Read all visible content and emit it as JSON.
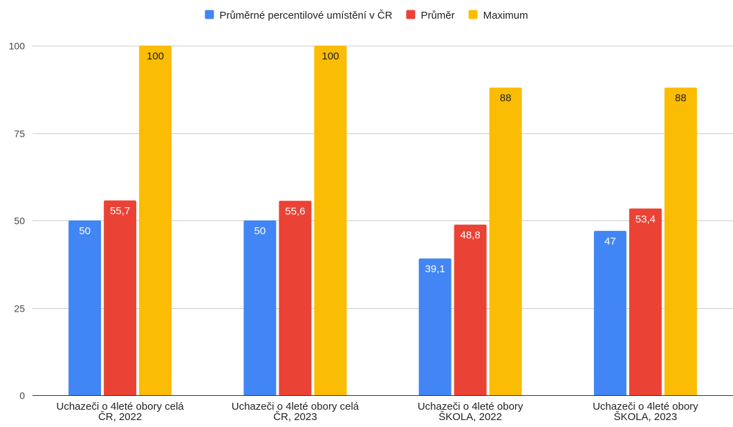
{
  "chart_data": {
    "type": "bar",
    "title": "",
    "xlabel": "",
    "ylabel": "",
    "categories": [
      [
        "Uchazeči o 4leté obory celá",
        "ČR, 2022"
      ],
      [
        "Uchazeči o 4leté obory celá",
        "ČR, 2023"
      ],
      [
        "Uchazeči o 4leté obory",
        "ŠKOLA, 2022"
      ],
      [
        "Uchazeči o 4leté obory",
        "ŠKOLA, 2023"
      ]
    ],
    "series": [
      {
        "name": "Průměrné percentilové umístění v ČR",
        "color": "#4285f4",
        "values": [
          50,
          50,
          39.1,
          47
        ],
        "labels": [
          "50",
          "50",
          "39,1",
          "47"
        ]
      },
      {
        "name": "Průměr",
        "color": "#ea4335",
        "values": [
          55.7,
          55.6,
          48.8,
          53.4
        ],
        "labels": [
          "55,7",
          "55,6",
          "48,8",
          "53,4"
        ]
      },
      {
        "name": "Maximum",
        "color": "#fbbc04",
        "values": [
          100,
          100,
          88,
          88
        ],
        "labels": [
          "100",
          "100",
          "88",
          "88"
        ]
      }
    ],
    "ylim": [
      0,
      100
    ],
    "yticks": [
      0,
      25,
      50,
      75,
      100
    ],
    "grid": true,
    "legend": "top-center",
    "label_colors": [
      "#ffffff",
      "#ffffff",
      "#202124"
    ]
  }
}
